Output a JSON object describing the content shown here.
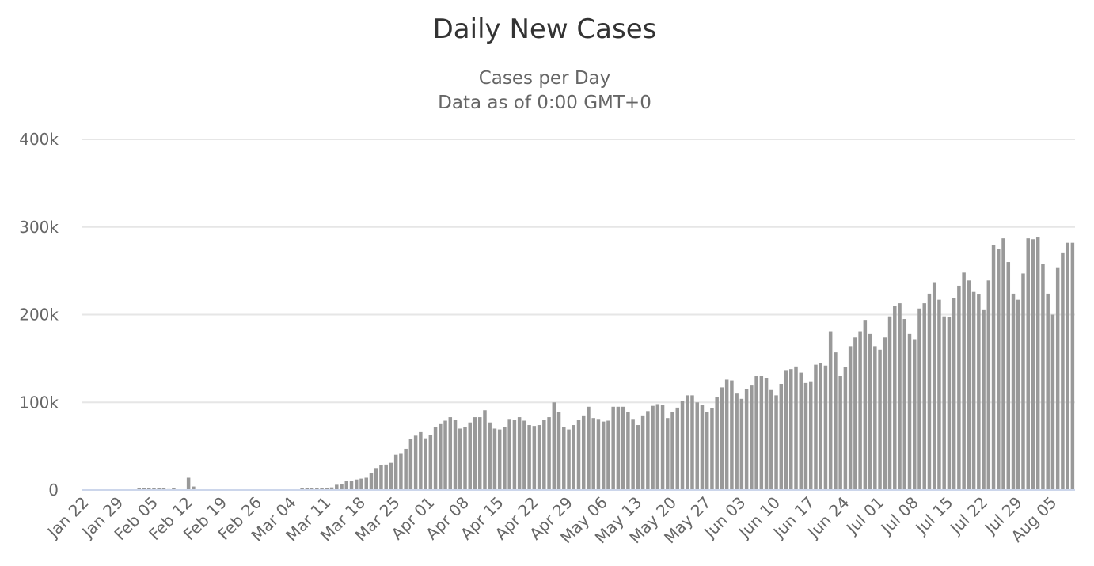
{
  "chart_data": {
    "type": "bar",
    "title": "Daily New Cases",
    "subtitle_lines": [
      "Cases per Day",
      "Data as of 0:00 GMT+0"
    ],
    "xlabel": "",
    "ylabel": "",
    "ylim": [
      0,
      400000
    ],
    "y_ticks": [
      0,
      100000,
      200000,
      300000,
      400000
    ],
    "y_tick_labels": [
      "0",
      "100k",
      "200k",
      "300k",
      "400k"
    ],
    "x_tick_labels": [
      "Jan 22",
      "Jan 29",
      "Feb 05",
      "Feb 12",
      "Feb 19",
      "Feb 26",
      "Mar 04",
      "Mar 11",
      "Mar 18",
      "Mar 25",
      "Apr 01",
      "Apr 08",
      "Apr 15",
      "Apr 22",
      "Apr 29",
      "May 06",
      "May 13",
      "May 20",
      "May 27",
      "Jun 03",
      "Jun 10",
      "Jun 17",
      "Jun 24",
      "Jul 01",
      "Jul 08",
      "Jul 15",
      "Jul 22",
      "Jul 29",
      "Aug 05"
    ],
    "grid": true,
    "legend": "none",
    "bar_color": "#999999",
    "first_date": "Jan 22",
    "series": [
      {
        "values": [
          0,
          0,
          0,
          0,
          0,
          0,
          0,
          0,
          0,
          0,
          0,
          2000,
          2000,
          2000,
          2000,
          2000,
          2000,
          1000,
          2000,
          0,
          0,
          14000,
          4000,
          0,
          0,
          0,
          0,
          0,
          0,
          0,
          0,
          0,
          0,
          0,
          0,
          0,
          0,
          0,
          0,
          0,
          0,
          0,
          0,
          0,
          2000,
          2000,
          2000,
          2000,
          2000,
          2000,
          3000,
          6000,
          7000,
          10000,
          10000,
          12000,
          13000,
          14000,
          19000,
          25000,
          28000,
          29000,
          31000,
          40000,
          42000,
          47000,
          58000,
          62000,
          66000,
          59000,
          63000,
          72000,
          76000,
          79000,
          83000,
          80000,
          70000,
          72000,
          77000,
          83000,
          83000,
          91000,
          77000,
          70000,
          69000,
          72000,
          81000,
          80000,
          83000,
          79000,
          74000,
          73000,
          74000,
          80000,
          83000,
          100000,
          89000,
          72000,
          69000,
          74000,
          80000,
          85000,
          95000,
          82000,
          81000,
          78000,
          79000,
          95000,
          95000,
          95000,
          89000,
          81000,
          74000,
          85000,
          90000,
          96000,
          98000,
          97000,
          82000,
          89000,
          94000,
          102000,
          108000,
          108000,
          100000,
          97000,
          89000,
          93000,
          106000,
          117000,
          126000,
          125000,
          110000,
          104000,
          115000,
          120000,
          130000,
          130000,
          128000,
          114000,
          108000,
          121000,
          136000,
          138000,
          141000,
          134000,
          122000,
          124000,
          143000,
          145000,
          142000,
          181000,
          157000,
          130000,
          140000,
          164000,
          174000,
          181000,
          194000,
          178000,
          164000,
          160000,
          174000,
          198000,
          210000,
          213000,
          195000,
          178000,
          172000,
          207000,
          213000,
          224000,
          237000,
          217000,
          198000,
          197000,
          219000,
          233000,
          248000,
          239000,
          226000,
          223000,
          206000,
          239000,
          279000,
          275000,
          287000,
          260000,
          224000,
          217000,
          247000,
          287000,
          286000,
          288000,
          258000,
          224000,
          200000,
          254000,
          271000,
          282000,
          282000
        ]
      }
    ]
  }
}
